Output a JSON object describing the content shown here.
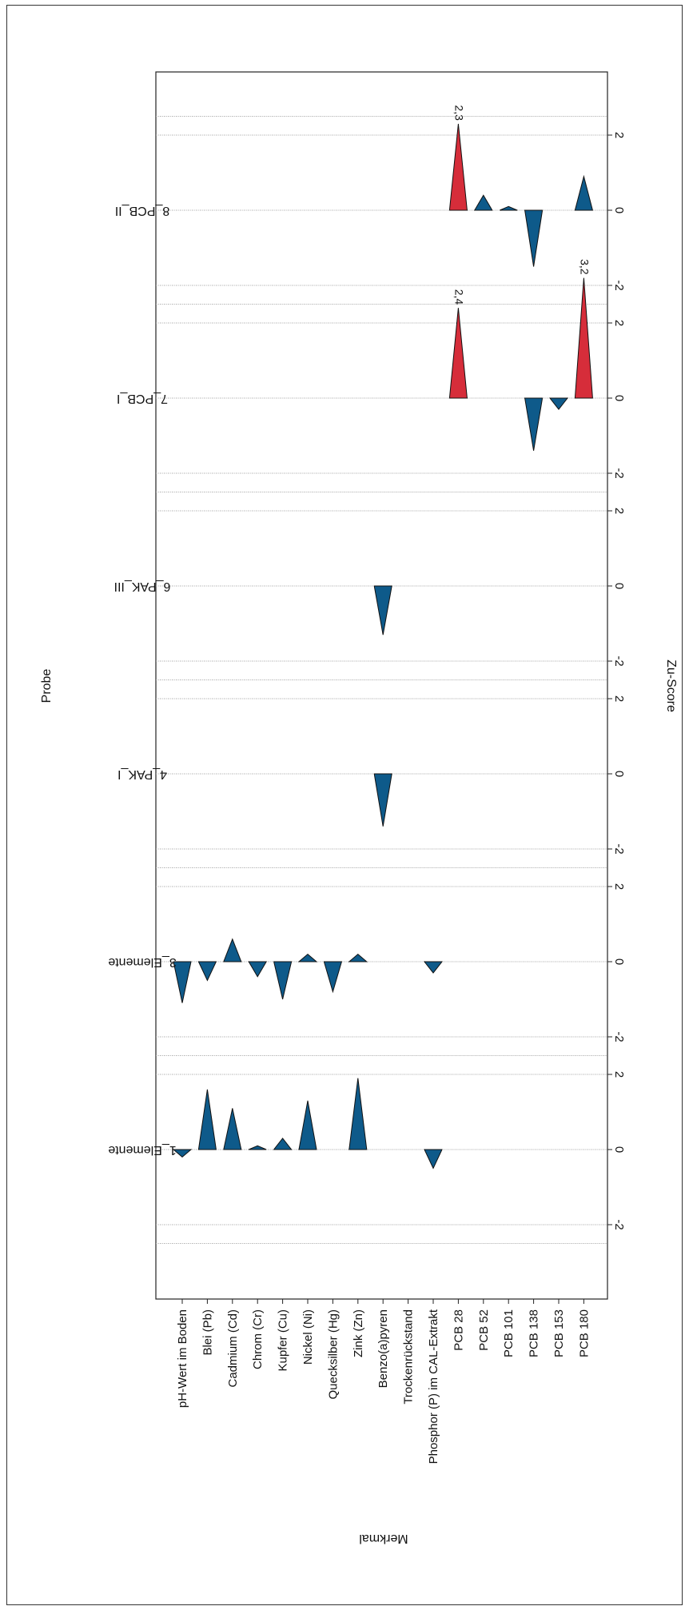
{
  "chart_data": {
    "type": "triangle-profile",
    "orientation": "rotated-90",
    "y_axis_title": "Zu-Score",
    "x_axis_title": "Merkmal",
    "panel_axis_title": "Probe",
    "categories": [
      "pH-Wert im Boden",
      "Blei (Pb)",
      "Cadmium (Cd)",
      "Chrom (Cr)",
      "Kupfer (Cu)",
      "Nickel (Ni)",
      "Quecksilber (Hg)",
      "Zink (Zn)",
      "Benzo(a)pyren",
      "Trockenrückstand",
      "Phosphor (P) im CAL-Extrakt",
      "PCB 28",
      "PCB 52",
      "PCB 101",
      "PCB 138",
      "PCB 153",
      "PCB 180"
    ],
    "zscore_ticks": [
      "-2",
      "0",
      "2"
    ],
    "panel_range": [
      -2.5,
      2.5
    ],
    "colors": {
      "positive": "#0e5a8a",
      "negative": "#0e5a8a",
      "exceed": "#d62d3a",
      "grid": "#9a9a9a"
    },
    "panels": [
      {
        "name": "1_Elemente",
        "values": [
          -0.2,
          1.6,
          1.1,
          0.1,
          0.3,
          1.3,
          null,
          1.9,
          null,
          null,
          -0.5,
          null,
          null,
          null,
          null,
          null,
          null
        ],
        "labels": {}
      },
      {
        "name": "3_Elemente",
        "values": [
          -1.1,
          -0.5,
          0.6,
          -0.4,
          -1.0,
          0.2,
          -0.8,
          0.2,
          null,
          null,
          -0.3,
          null,
          null,
          null,
          null,
          null,
          null
        ],
        "labels": {}
      },
      {
        "name": "4_PAK_I",
        "values": [
          null,
          null,
          null,
          null,
          null,
          null,
          null,
          null,
          -1.4,
          null,
          null,
          null,
          null,
          null,
          null,
          null,
          null
        ],
        "labels": {}
      },
      {
        "name": "6_PAK_III",
        "values": [
          null,
          null,
          null,
          null,
          null,
          null,
          null,
          null,
          -1.3,
          null,
          null,
          null,
          null,
          null,
          null,
          null,
          null
        ],
        "labels": {}
      },
      {
        "name": "7_PCB_I",
        "values": [
          null,
          null,
          null,
          null,
          null,
          null,
          null,
          null,
          null,
          null,
          null,
          2.4,
          null,
          null,
          -1.4,
          -0.3,
          3.2
        ],
        "labels": {
          "11": "2,4",
          "16": "3,2"
        }
      },
      {
        "name": "8_PCB_II",
        "values": [
          null,
          null,
          null,
          null,
          null,
          null,
          null,
          null,
          null,
          null,
          null,
          2.3,
          0.4,
          0.1,
          -1.5,
          null,
          0.9
        ],
        "labels": {
          "11": "2,3"
        }
      }
    ]
  }
}
